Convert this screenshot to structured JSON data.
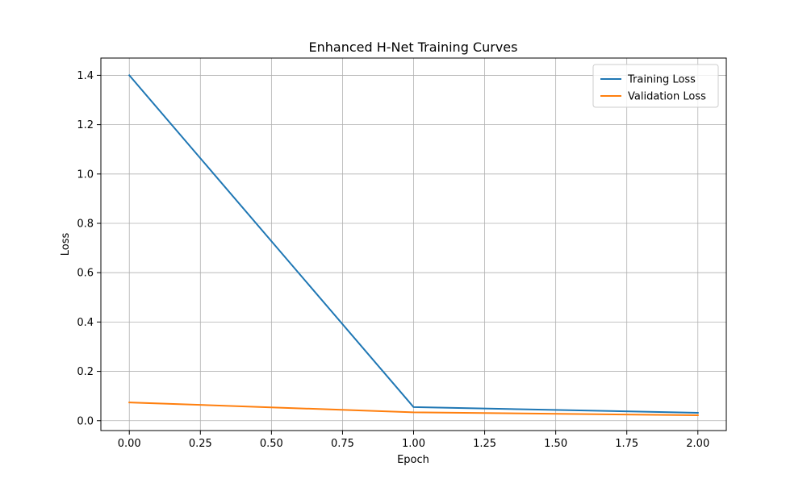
{
  "chart_data": {
    "type": "line",
    "title": "Enhanced H-Net Training Curves",
    "xlabel": "Epoch",
    "ylabel": "Loss",
    "xlim": [
      -0.1,
      2.1
    ],
    "ylim": [
      -0.04,
      1.47
    ],
    "xticks": [
      0.0,
      0.25,
      0.5,
      0.75,
      1.0,
      1.25,
      1.5,
      1.75,
      2.0
    ],
    "xtick_labels": [
      "0.00",
      "0.25",
      "0.50",
      "0.75",
      "1.00",
      "1.25",
      "1.50",
      "1.75",
      "2.00"
    ],
    "yticks": [
      0.0,
      0.2,
      0.4,
      0.6,
      0.8,
      1.0,
      1.2,
      1.4
    ],
    "ytick_labels": [
      "0.0",
      "0.2",
      "0.4",
      "0.6",
      "0.8",
      "1.0",
      "1.2",
      "1.4"
    ],
    "grid": true,
    "legend_position": "top-right",
    "x": [
      0,
      1,
      2
    ],
    "series": [
      {
        "name": "Training Loss",
        "color": "#1f77b4",
        "values": [
          1.4,
          0.055,
          0.032
        ]
      },
      {
        "name": "Validation Loss",
        "color": "#ff7f0e",
        "values": [
          0.074,
          0.034,
          0.022
        ]
      }
    ]
  }
}
